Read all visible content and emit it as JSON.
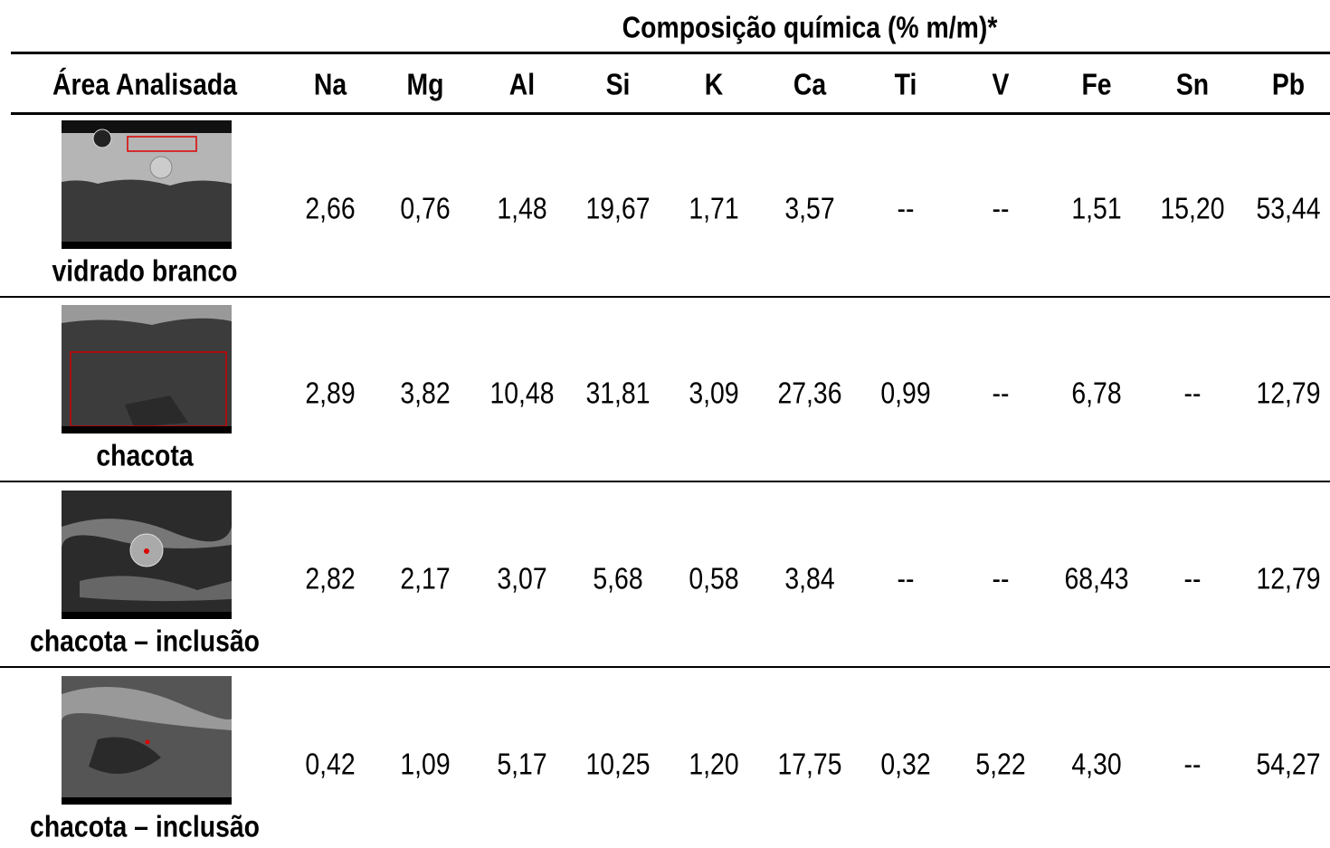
{
  "header": {
    "group_title": "Composição química (% m/m)*",
    "area_label": "Área Analisada",
    "elements": [
      "Na",
      "Mg",
      "Al",
      "Si",
      "K",
      "Ca",
      "Ti",
      "V",
      "Fe",
      "Sn",
      "Pb"
    ]
  },
  "table": {
    "rows": [
      {
        "area": "vidrado branco",
        "values": [
          "2,66",
          "0,76",
          "1,48",
          "19,67",
          "1,71",
          "3,57",
          "--",
          "--",
          "1,51",
          "15,20",
          "53,44"
        ]
      },
      {
        "area": "chacota",
        "values": [
          "2,89",
          "3,82",
          "10,48",
          "31,81",
          "3,09",
          "27,36",
          "0,99",
          "--",
          "6,78",
          "--",
          "12,79"
        ]
      },
      {
        "area": "chacota – inclusão",
        "values": [
          "2,82",
          "2,17",
          "3,07",
          "5,68",
          "0,58",
          "3,84",
          "--",
          "--",
          "68,43",
          "--",
          "12,79"
        ]
      },
      {
        "area": "chacota – inclusão",
        "values": [
          "0,42",
          "1,09",
          "5,17",
          "10,25",
          "1,20",
          "17,75",
          "0,32",
          "5,22",
          "4,30",
          "--",
          "54,27"
        ]
      }
    ]
  }
}
